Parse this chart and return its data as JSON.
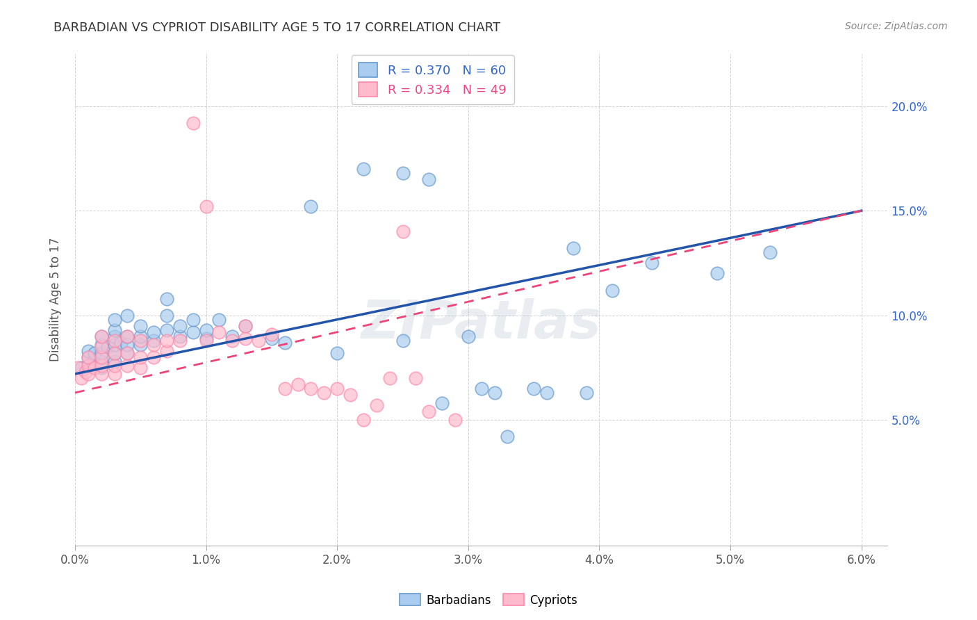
{
  "title": "BARBADIAN VS CYPRIOT DISABILITY AGE 5 TO 17 CORRELATION CHART",
  "source": "Source: ZipAtlas.com",
  "ylabel": "Disability Age 5 to 17",
  "xlim": [
    0.0,
    0.062
  ],
  "ylim": [
    -0.01,
    0.225
  ],
  "xticks": [
    0.0,
    0.01,
    0.02,
    0.03,
    0.04,
    0.05,
    0.06
  ],
  "yticks": [
    0.05,
    0.1,
    0.15,
    0.2
  ],
  "ytick_labels": [
    "5.0%",
    "10.0%",
    "15.0%",
    "20.0%"
  ],
  "xtick_labels": [
    "0.0%",
    "1.0%",
    "2.0%",
    "3.0%",
    "4.0%",
    "5.0%",
    "6.0%"
  ],
  "barbadian_R": 0.37,
  "barbadian_N": 60,
  "cypriot_R": 0.334,
  "cypriot_N": 49,
  "blue_scatter_color": "#AACCEE",
  "blue_scatter_edge": "#6699CC",
  "pink_scatter_color": "#FFBBCC",
  "pink_scatter_edge": "#FF88AA",
  "blue_line_color": "#2255AA",
  "pink_line_color": "#EE4477",
  "legend_blue_text_color": "#3366CC",
  "legend_pink_text_color": "#EE4488",
  "right_axis_color": "#3366CC",
  "watermark": "ZIPatlas",
  "barbadian_x": [
    0.0005,
    0.001,
    0.001,
    0.0015,
    0.0015,
    0.002,
    0.002,
    0.002,
    0.002,
    0.002,
    0.0025,
    0.003,
    0.003,
    0.003,
    0.003,
    0.003,
    0.003,
    0.0035,
    0.004,
    0.004,
    0.004,
    0.004,
    0.005,
    0.005,
    0.005,
    0.006,
    0.006,
    0.007,
    0.007,
    0.007,
    0.008,
    0.008,
    0.009,
    0.009,
    0.01,
    0.01,
    0.011,
    0.012,
    0.013,
    0.015,
    0.016,
    0.018,
    0.02,
    0.022,
    0.025,
    0.027,
    0.03,
    0.032,
    0.035,
    0.038,
    0.041,
    0.025,
    0.028,
    0.031,
    0.033,
    0.036,
    0.039,
    0.044,
    0.049,
    0.053
  ],
  "barbadian_y": [
    0.075,
    0.08,
    0.083,
    0.079,
    0.082,
    0.075,
    0.078,
    0.082,
    0.086,
    0.09,
    0.085,
    0.078,
    0.082,
    0.086,
    0.09,
    0.093,
    0.098,
    0.087,
    0.082,
    0.086,
    0.09,
    0.1,
    0.086,
    0.09,
    0.095,
    0.088,
    0.092,
    0.093,
    0.1,
    0.108,
    0.09,
    0.095,
    0.092,
    0.098,
    0.089,
    0.093,
    0.098,
    0.09,
    0.095,
    0.089,
    0.087,
    0.152,
    0.082,
    0.17,
    0.168,
    0.165,
    0.09,
    0.063,
    0.065,
    0.132,
    0.112,
    0.088,
    0.058,
    0.065,
    0.042,
    0.063,
    0.063,
    0.125,
    0.12,
    0.13
  ],
  "cypriot_x": [
    0.0002,
    0.0005,
    0.0008,
    0.001,
    0.001,
    0.001,
    0.0015,
    0.002,
    0.002,
    0.002,
    0.002,
    0.002,
    0.003,
    0.003,
    0.003,
    0.003,
    0.004,
    0.004,
    0.004,
    0.005,
    0.005,
    0.005,
    0.006,
    0.006,
    0.007,
    0.007,
    0.008,
    0.009,
    0.01,
    0.01,
    0.011,
    0.012,
    0.013,
    0.013,
    0.014,
    0.015,
    0.016,
    0.017,
    0.018,
    0.019,
    0.02,
    0.021,
    0.022,
    0.023,
    0.024,
    0.025,
    0.026,
    0.027,
    0.029
  ],
  "cypriot_y": [
    0.075,
    0.07,
    0.073,
    0.072,
    0.076,
    0.08,
    0.075,
    0.072,
    0.076,
    0.08,
    0.085,
    0.09,
    0.072,
    0.076,
    0.082,
    0.088,
    0.076,
    0.082,
    0.09,
    0.075,
    0.08,
    0.088,
    0.08,
    0.086,
    0.083,
    0.088,
    0.088,
    0.192,
    0.152,
    0.088,
    0.092,
    0.088,
    0.089,
    0.095,
    0.088,
    0.091,
    0.065,
    0.067,
    0.065,
    0.063,
    0.065,
    0.062,
    0.05,
    0.057,
    0.07,
    0.14,
    0.07,
    0.054,
    0.05
  ]
}
